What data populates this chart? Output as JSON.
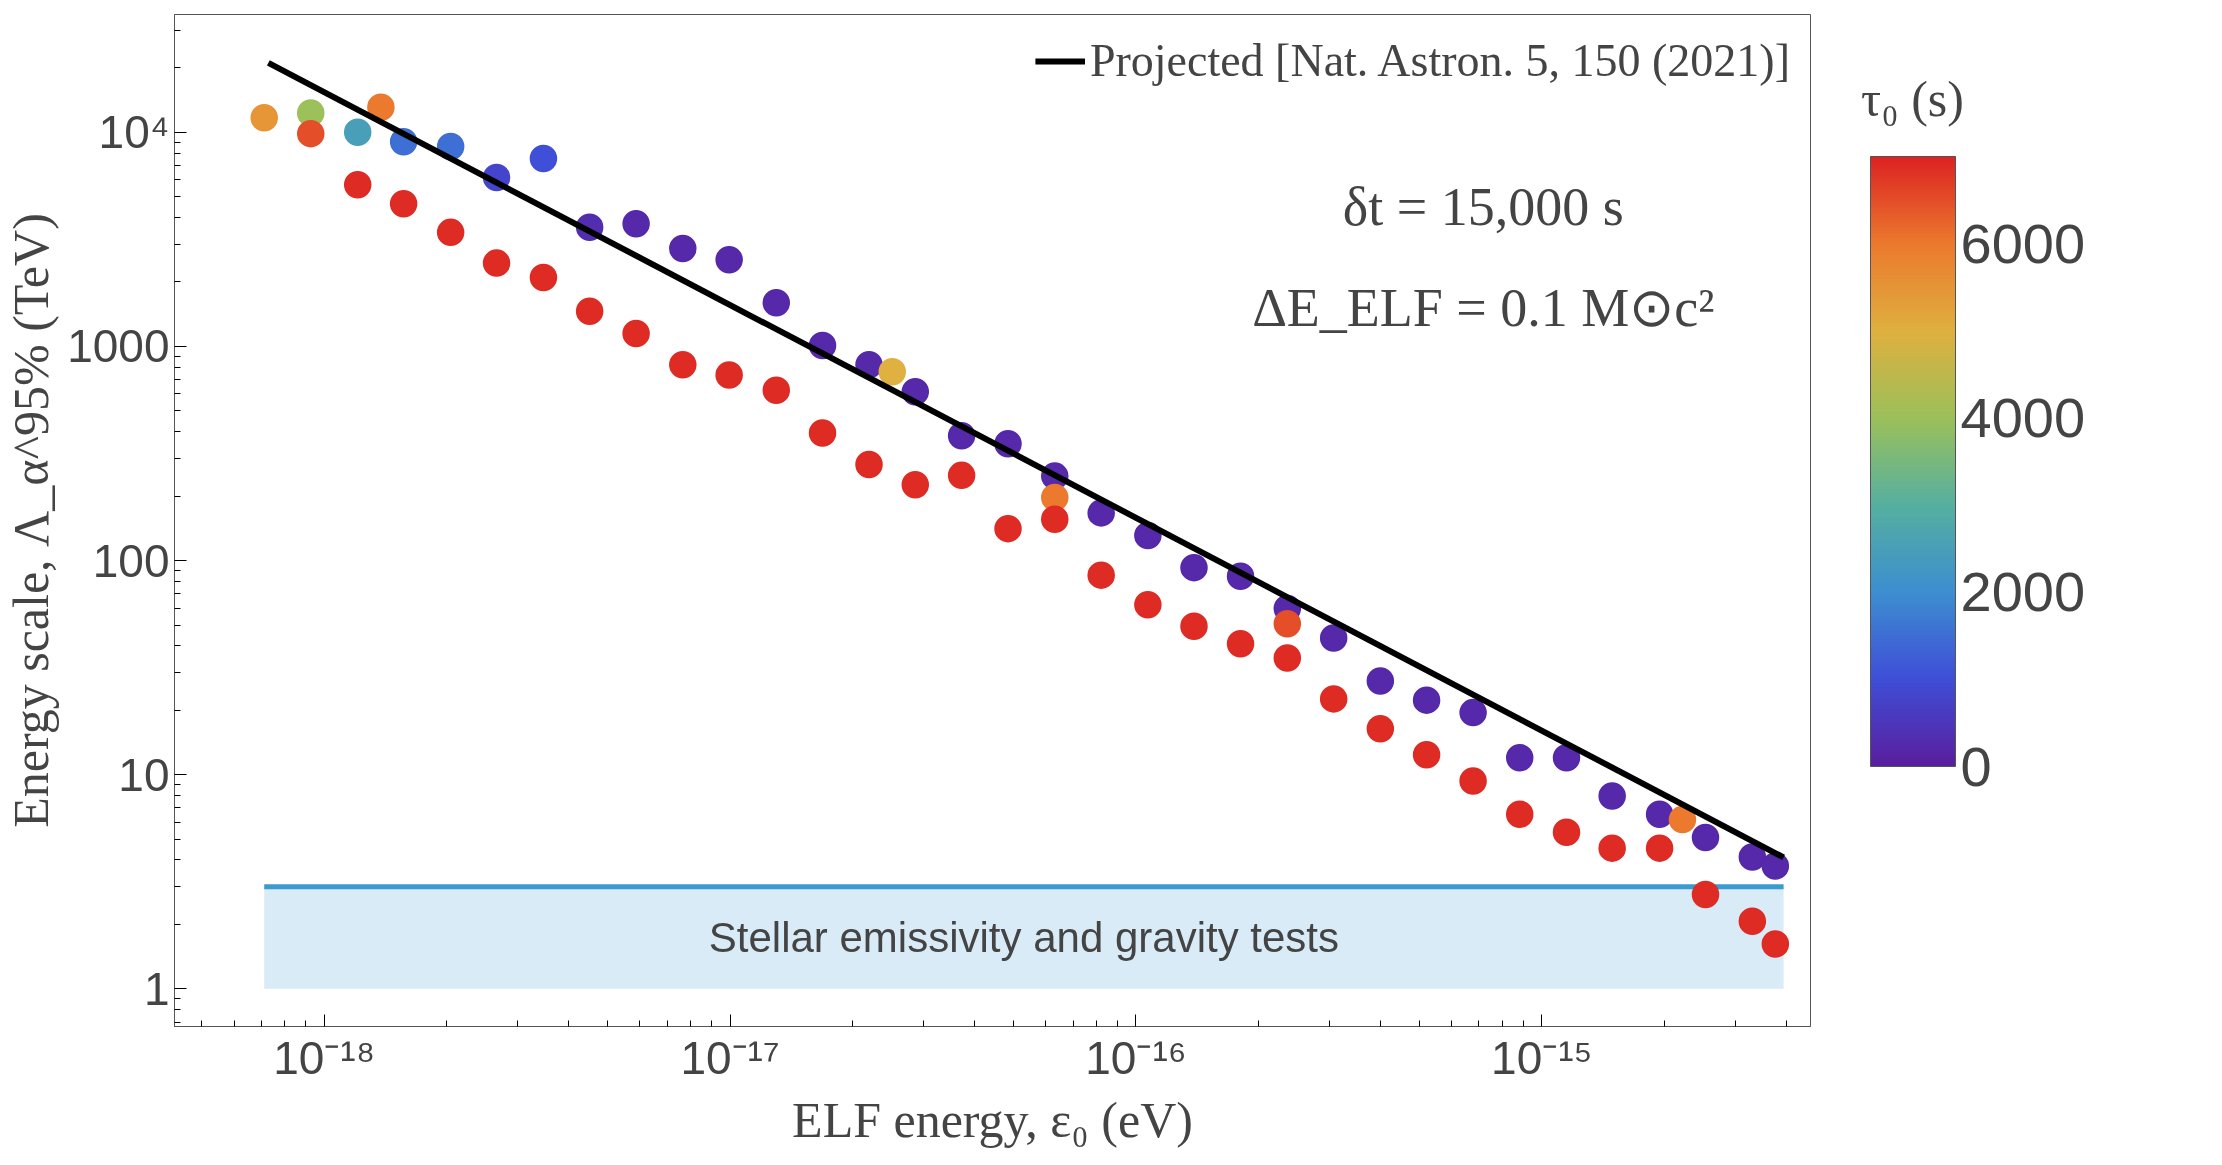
{
  "chart_data": {
    "type": "scatter",
    "xlabel": "ELF energy, ε₀ (eV)",
    "ylabel": "Energy scale, Λ_α^95% (TeV)",
    "clabel": "τ₀ (s)",
    "annotations": [
      "δt = 15,000 s",
      "ΔE_ELF = 0.1 M⊙c²"
    ],
    "log": "xy",
    "xlim": [
      4.28e-19,
      4.59e-15
    ],
    "xticks": [
      {
        "value": 1e-18,
        "label": "10⁻¹⁸"
      },
      {
        "value": 1e-17,
        "label": "10⁻¹⁷"
      },
      {
        "value": 1e-16,
        "label": "10⁻¹⁶"
      },
      {
        "value": 1e-15,
        "label": "10⁻¹⁵"
      }
    ],
    "ylim": [
      0.667,
      35500
    ],
    "yticks": [
      1,
      10,
      100,
      1000,
      {
        "value": 10000,
        "label": "10⁴"
      }
    ],
    "clim": [
      0,
      7000
    ],
    "cticks": [
      0,
      2000,
      4000,
      6000
    ],
    "legend": "top right",
    "series": [
      {
        "marker": "circle",
        "x": [
          7.12e-19,
          9.27e-19,
          9.27e-19,
          1.21e-18,
          1.21e-18,
          1.38e-18,
          1.57e-18,
          1.57e-18,
          2.05e-18,
          2.05e-18,
          2.66e-18,
          2.66e-18,
          3.47e-18,
          3.47e-18,
          4.51e-18,
          4.51e-18,
          5.87e-18,
          5.87e-18,
          7.65e-18,
          7.65e-18,
          9.95e-18,
          9.95e-18,
          1.3e-17,
          1.3e-17,
          1.69e-17,
          1.69e-17,
          2.2e-17,
          2.2e-17,
          2.51e-17,
          2.86e-17,
          2.86e-17,
          3.72e-17,
          3.72e-17,
          4.84e-17,
          4.84e-17,
          6.31e-17,
          6.31e-17,
          6.31e-17,
          8.21e-17,
          8.21e-17,
          1.07e-16,
          1.07e-16,
          1.39e-16,
          1.39e-16,
          1.81e-16,
          1.81e-16,
          2.36e-16,
          2.36e-16,
          2.36e-16,
          3.07e-16,
          3.07e-16,
          4e-16,
          4e-16,
          5.2e-16,
          5.2e-16,
          6.77e-16,
          6.77e-16,
          8.82e-16,
          8.82e-16,
          1.15e-15,
          1.15e-15,
          1.49e-15,
          1.49e-15,
          1.95e-15,
          1.95e-15,
          2.22e-15,
          2.53e-15,
          2.53e-15,
          3.3e-15,
          3.3e-15,
          3.76e-15,
          3.76e-15
        ],
        "values": [
          11700,
          12300,
          9860,
          10000,
          5690,
          13100,
          9030,
          4640,
          8580,
          3410,
          6150,
          2450,
          7550,
          2100,
          3600,
          1460,
          3740,
          1150,
          2870,
          822,
          2540,
          736,
          1600,
          624,
          1010,
          394,
          822,
          281,
          762,
          614,
          226,
          383,
          250,
          351,
          141,
          248,
          197,
          156,
          167,
          85.5,
          131,
          62.2,
          92.7,
          49.4,
          84.5,
          40.9,
          59.7,
          50.7,
          35.1,
          43.5,
          22.6,
          27.4,
          16.4,
          22.3,
          12.4,
          19.5,
          9.35,
          12.0,
          6.53,
          12.0,
          5.39,
          7.96,
          4.54,
          6.53,
          4.54,
          6.17,
          5.09,
          2.76,
          4.13,
          2.07,
          3.75,
          1.62
        ],
        "colors": [
          "#e69537",
          "#9cc05a",
          "#e44e28",
          "#499fb8",
          "#de2c24",
          "#ec7a2e",
          "#3e6fd4",
          "#de2c24",
          "#3e6fd4",
          "#de2c24",
          "#4445cc",
          "#de2c24",
          "#3f4fd8",
          "#de2c24",
          "#522daf",
          "#de2c24",
          "#5529aa",
          "#de2c24",
          "#5529aa",
          "#de2c24",
          "#5529aa",
          "#de2c24",
          "#5529aa",
          "#de2c24",
          "#5529aa",
          "#de2c24",
          "#5529aa",
          "#de2c24",
          "#e0b040",
          "#5529aa",
          "#de2c24",
          "#5529aa",
          "#de2c24",
          "#5529aa",
          "#de2c24",
          "#5529aa",
          "#ec7a2e",
          "#de2c24",
          "#5529aa",
          "#de2c24",
          "#5529aa",
          "#de2c24",
          "#5529aa",
          "#de2c24",
          "#5529aa",
          "#de2c24",
          "#5529aa",
          "#e44e28",
          "#de2c24",
          "#5529aa",
          "#de2c24",
          "#5529aa",
          "#de2c24",
          "#5529aa",
          "#de2c24",
          "#5529aa",
          "#de2c24",
          "#5529aa",
          "#de2c24",
          "#5529aa",
          "#de2c24",
          "#5529aa",
          "#de2c24",
          "#5529aa",
          "#de2c24",
          "#ec7a2e",
          "#5529aa",
          "#de2c24",
          "#5529aa",
          "#de2c24",
          "#5529aa",
          "#de2c24"
        ],
        "cvalues": [
          5500,
          4000,
          6500,
          2500,
          6900,
          6000,
          1500,
          6900,
          1500,
          6900,
          800,
          6900,
          1000,
          6900,
          300,
          6900,
          200,
          6900,
          200,
          6900,
          200,
          6900,
          200,
          6900,
          200,
          6900,
          200,
          6900,
          5000,
          200,
          6900,
          200,
          6900,
          200,
          6900,
          200,
          6000,
          6900,
          200,
          6900,
          200,
          6900,
          200,
          6900,
          200,
          6900,
          200,
          6500,
          6900,
          200,
          6900,
          200,
          6900,
          200,
          6900,
          200,
          6900,
          200,
          6900,
          200,
          6900,
          200,
          6900,
          200,
          6900,
          6000,
          200,
          6900,
          200,
          6900,
          200,
          6900
        ]
      },
      {
        "type": "line",
        "name": "Projected [Nat. Astron. 5, 150 (2021)]",
        "color": "#000000",
        "x": [
          7.29e-19,
          3.94e-15
        ],
        "values": [
          21100,
          4.11
        ]
      }
    ],
    "ref_lines": [
      {
        "axis": "y",
        "value": 3,
        "color": "#3b9ad0"
      }
    ],
    "bands": [
      {
        "axis": "y",
        "from": 1,
        "to": 3,
        "label": "Stellar emissivity and gravity tests",
        "color": "#3b9ad0"
      }
    ]
  }
}
